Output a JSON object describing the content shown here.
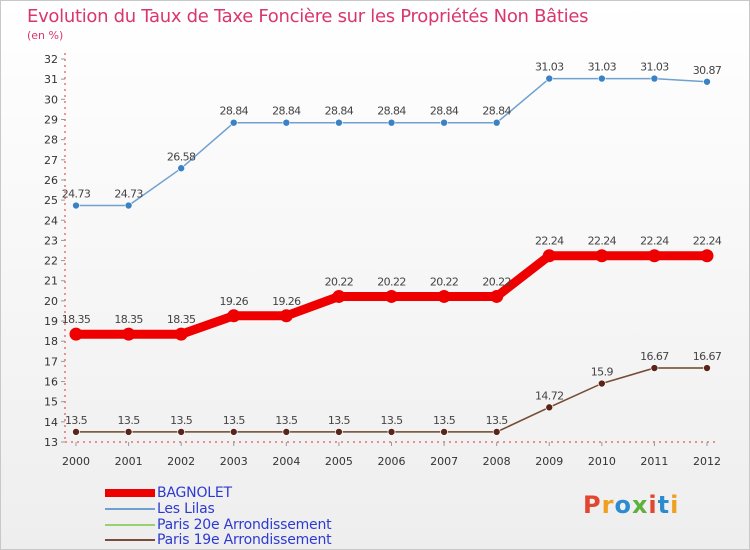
{
  "title": "Evolution du Taux de Taxe Foncière sur les Propriétés Non Bâties",
  "subtitle": "(en %)",
  "logo": {
    "text": "Proxiti",
    "colors": [
      "#e2462f",
      "#f0a020",
      "#2d8bd0",
      "#60b040",
      "#e2462f",
      "#2d8bd0",
      "#f0a020"
    ]
  },
  "chart_data": {
    "type": "line",
    "title": "Evolution du Taux de Taxe Foncière sur les Propriétés Non Bâties",
    "ylabel": "(en %)",
    "x": [
      "2000",
      "2001",
      "2002",
      "2003",
      "2004",
      "2005",
      "2006",
      "2007",
      "2008",
      "2009",
      "2010",
      "2011",
      "2012"
    ],
    "ylim": [
      13,
      32
    ],
    "yticks": [
      13,
      14,
      15,
      16,
      17,
      18,
      19,
      20,
      21,
      22,
      23,
      24,
      25,
      26,
      27,
      28,
      29,
      30,
      31,
      32
    ],
    "grid": false,
    "legend_position": "bottom-left",
    "series": [
      {
        "name": "BAGNOLET",
        "color": "#ee0000",
        "values": [
          18.35,
          18.35,
          18.35,
          19.26,
          19.26,
          20.22,
          20.22,
          20.22,
          20.22,
          22.24,
          22.24,
          22.24,
          22.24
        ],
        "labels": [
          "18.35",
          "18.35",
          "18.35",
          "19.26",
          "19.26",
          "20.22",
          "20.22",
          "20.22",
          "20.22",
          "22.24",
          "22.24",
          "22.24",
          "22.24"
        ],
        "marker_color": "#ee0000"
      },
      {
        "name": "Les Lilas",
        "color": "#6fa0d0",
        "values": [
          24.73,
          24.73,
          26.58,
          28.84,
          28.84,
          28.84,
          28.84,
          28.84,
          28.84,
          31.03,
          31.03,
          31.03,
          30.87
        ],
        "labels": [
          "24.73",
          "24.73",
          "26.58",
          "28.84",
          "28.84",
          "28.84",
          "28.84",
          "28.84",
          "28.84",
          "31.03",
          "31.03",
          "31.03",
          "30.87"
        ],
        "marker_color": "#3b82c4"
      },
      {
        "name": "Paris 20e  Arrondissement",
        "color": "#99d070",
        "values": [
          13.5,
          13.5,
          13.5,
          13.5,
          13.5,
          13.5,
          13.5,
          13.5,
          13.5,
          14.72,
          15.9,
          16.67,
          16.67
        ],
        "labels": [
          "",
          "",
          "",
          "",
          "",
          "",
          "",
          "",
          "",
          "",
          "",
          "",
          ""
        ],
        "marker_color": "#99d070"
      },
      {
        "name": "Paris 19e  Arrondissement",
        "color": "#7a4a3a",
        "values": [
          13.5,
          13.5,
          13.5,
          13.5,
          13.5,
          13.5,
          13.5,
          13.5,
          13.5,
          14.72,
          15.9,
          16.67,
          16.67
        ],
        "labels": [
          "13.5",
          "13.5",
          "13.5",
          "13.5",
          "13.5",
          "13.5",
          "13.5",
          "13.5",
          "13.5",
          "14.72",
          "15.9",
          "16.67",
          "16.67"
        ],
        "marker_color": "#5a2418"
      }
    ]
  }
}
